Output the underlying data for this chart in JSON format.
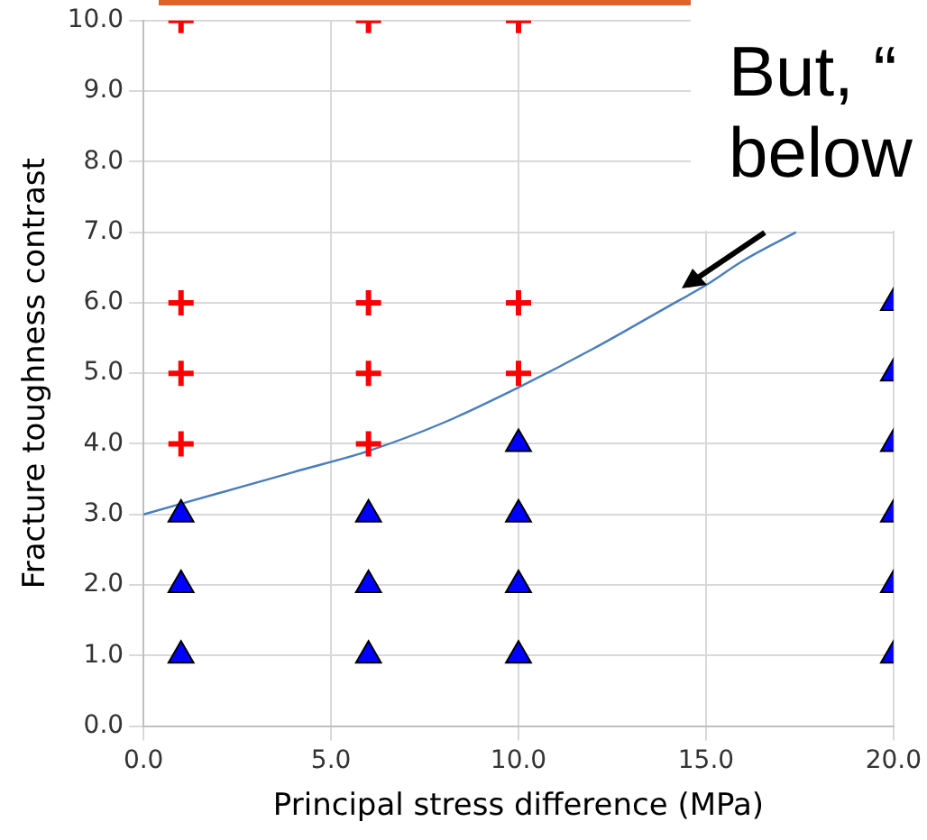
{
  "chart_data": {
    "type": "scatter",
    "xlabel": "Principal stress difference (MPa)",
    "ylabel": "Fracture toughness contrast",
    "xlim": [
      0,
      20
    ],
    "xticks": [
      {
        "value": 0,
        "label": "0.0"
      },
      {
        "value": 5,
        "label": "5.0"
      },
      {
        "value": 10,
        "label": "10.0"
      },
      {
        "value": 15,
        "label": "15.0"
      },
      {
        "value": 20,
        "label": "20.0"
      }
    ],
    "ylim": [
      0,
      10
    ],
    "yticks": [
      {
        "value": 0,
        "label": "0.0"
      },
      {
        "value": 1,
        "label": "1.0"
      },
      {
        "value": 2,
        "label": "2.0"
      },
      {
        "value": 3,
        "label": "3.0"
      },
      {
        "value": 4,
        "label": "4.0"
      },
      {
        "value": 5,
        "label": "5.0"
      },
      {
        "value": 6,
        "label": "6.0"
      },
      {
        "value": 7,
        "label": "7.0"
      },
      {
        "value": 8,
        "label": "8.0"
      },
      {
        "value": 9,
        "label": "9.0"
      },
      {
        "value": 10,
        "label": "10.0"
      }
    ],
    "grid": true,
    "series": [
      {
        "type": "scatter",
        "marker": "cross",
        "color": "#ff0000",
        "x": [
          1,
          1,
          1,
          1,
          6,
          6,
          6,
          6,
          10,
          10,
          10
        ],
        "values": [
          4,
          5,
          6,
          10,
          4,
          5,
          6,
          10,
          5,
          6,
          10
        ]
      },
      {
        "type": "scatter",
        "marker": "triangle",
        "color": "#0000ff",
        "x": [
          1,
          1,
          1,
          6,
          6,
          6,
          10,
          10,
          10,
          10,
          20,
          20,
          20,
          20,
          20,
          20
        ],
        "values": [
          1,
          2,
          3,
          1,
          2,
          3,
          1,
          2,
          3,
          4,
          1,
          2,
          3,
          4,
          5,
          6
        ]
      },
      {
        "type": "line",
        "marker": "none",
        "color": "#4a7ebb",
        "x": [
          0,
          2,
          4,
          6,
          8,
          10,
          12,
          14,
          15,
          16,
          17.4
        ],
        "values": [
          3.0,
          3.3,
          3.6,
          3.9,
          4.3,
          4.8,
          5.35,
          5.95,
          6.25,
          6.6,
          7.0
        ]
      }
    ],
    "annotations": [
      "But, “",
      "below"
    ]
  }
}
